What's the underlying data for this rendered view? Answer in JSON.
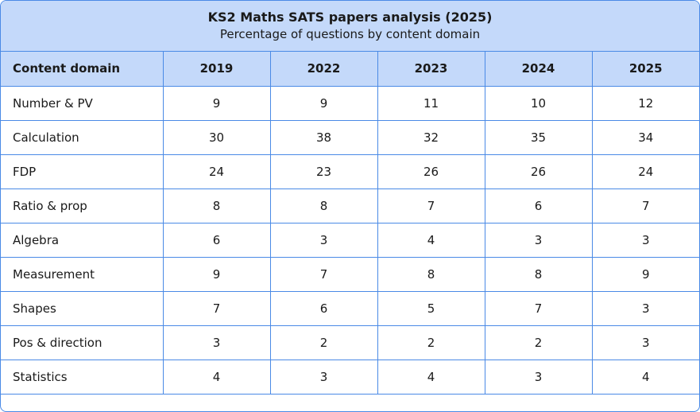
{
  "title": "KS2 Maths SATS papers analysis (2025)",
  "subtitle": "Percentage of questions by content domain",
  "table": {
    "header": [
      "Content domain",
      "2019",
      "2022",
      "2023",
      "2024",
      "2025"
    ],
    "rows": [
      [
        "Number & PV",
        9,
        9,
        11,
        10,
        12
      ],
      [
        "Calculation",
        30,
        38,
        32,
        35,
        34
      ],
      [
        "FDP",
        24,
        23,
        26,
        26,
        24
      ],
      [
        "Ratio & prop",
        8,
        8,
        7,
        6,
        7
      ],
      [
        "Algebra",
        6,
        3,
        4,
        3,
        3
      ],
      [
        "Measurement",
        9,
        7,
        8,
        8,
        9
      ],
      [
        "Shapes",
        7,
        6,
        5,
        7,
        3
      ],
      [
        "Pos & direction",
        3,
        2,
        2,
        2,
        3
      ],
      [
        "Statistics",
        4,
        3,
        4,
        3,
        4
      ]
    ]
  }
}
